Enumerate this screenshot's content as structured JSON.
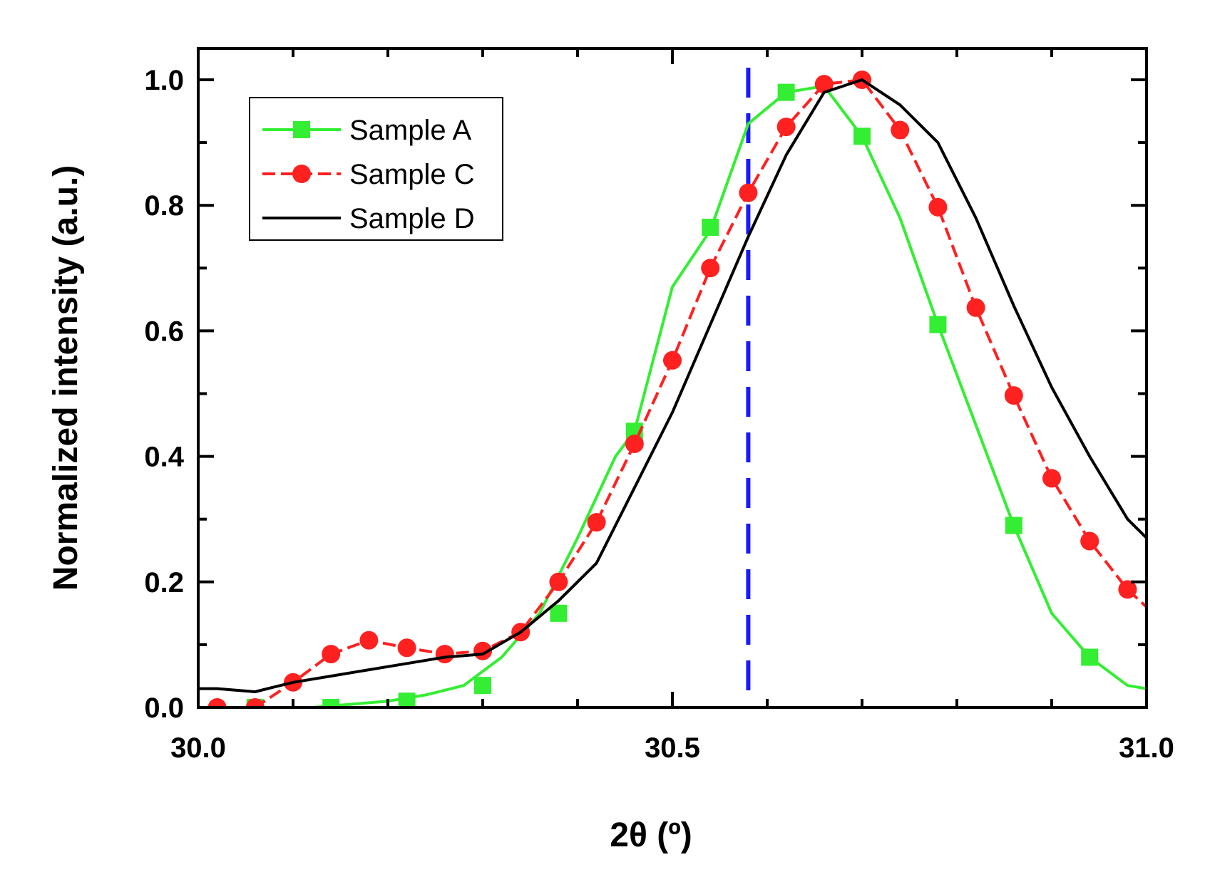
{
  "chart_data": {
    "type": "line",
    "title": "",
    "xlabel": "2θ (º)",
    "ylabel": "Normalized intensity (a.u.)",
    "xlim": [
      30.0,
      31.0
    ],
    "ylim": [
      0.0,
      1.05
    ],
    "x_ticks": [
      30.0,
      30.5,
      31.0
    ],
    "x_tick_labels": [
      "30.0",
      "30.5",
      "31.0"
    ],
    "y_ticks": [
      0.0,
      0.2,
      0.4,
      0.6,
      0.8,
      1.0
    ],
    "y_tick_labels": [
      "0.0",
      "0.2",
      "0.4",
      "0.6",
      "0.8",
      "1.0"
    ],
    "legend_position": "top-left",
    "reference_line": {
      "x": 30.58,
      "color": "#1a1aff",
      "style": "dashed"
    },
    "series": [
      {
        "name": "Sample A",
        "color": "#33ee33",
        "marker": "square",
        "x": [
          30.0,
          30.04,
          30.08,
          30.12,
          30.16,
          30.2,
          30.24,
          30.28,
          30.32,
          30.36,
          30.4,
          30.44,
          30.46,
          30.5,
          30.54,
          30.58,
          30.62,
          30.66,
          30.7,
          30.74,
          30.78,
          30.82,
          30.86,
          30.9,
          30.94,
          30.98,
          31.0
        ],
        "y": [
          0.0,
          0.0,
          0.0,
          0.0,
          0.005,
          0.01,
          0.02,
          0.035,
          0.08,
          0.15,
          0.27,
          0.4,
          0.44,
          0.67,
          0.76,
          0.93,
          0.98,
          0.99,
          0.91,
          0.78,
          0.61,
          0.45,
          0.29,
          0.15,
          0.08,
          0.035,
          0.03
        ],
        "marker_x": [
          30.06,
          30.14,
          30.22,
          30.3,
          30.38,
          30.46,
          30.54,
          30.62,
          30.7,
          30.78,
          30.86,
          30.94
        ],
        "marker_y": [
          0.0,
          0.0,
          0.01,
          0.035,
          0.15,
          0.44,
          0.765,
          0.98,
          0.91,
          0.61,
          0.29,
          0.08
        ]
      },
      {
        "name": "Sample C",
        "color": "#ff2020",
        "marker": "circle",
        "x": [
          30.02,
          30.06,
          30.1,
          30.14,
          30.18,
          30.22,
          30.26,
          30.3,
          30.34,
          30.38,
          30.42,
          30.46,
          30.5,
          30.54,
          30.58,
          30.62,
          30.66,
          30.7,
          30.74,
          30.78,
          30.82,
          30.86,
          30.9,
          30.94,
          30.98,
          31.0
        ],
        "y": [
          0.0,
          0.0,
          0.04,
          0.085,
          0.107,
          0.095,
          0.085,
          0.09,
          0.12,
          0.2,
          0.295,
          0.42,
          0.553,
          0.7,
          0.82,
          0.925,
          0.993,
          1.0,
          0.92,
          0.797,
          0.637,
          0.497,
          0.365,
          0.265,
          0.188,
          0.16
        ],
        "marker_x": [
          30.02,
          30.06,
          30.1,
          30.14,
          30.18,
          30.22,
          30.26,
          30.3,
          30.34,
          30.38,
          30.42,
          30.46,
          30.5,
          30.54,
          30.58,
          30.62,
          30.66,
          30.7,
          30.74,
          30.78,
          30.82,
          30.86,
          30.9,
          30.94,
          30.98
        ],
        "marker_y": [
          0.0,
          0.0,
          0.04,
          0.085,
          0.107,
          0.095,
          0.085,
          0.09,
          0.12,
          0.2,
          0.295,
          0.42,
          0.553,
          0.7,
          0.82,
          0.925,
          0.993,
          1.0,
          0.92,
          0.797,
          0.637,
          0.497,
          0.365,
          0.265,
          0.188
        ]
      },
      {
        "name": "Sample D",
        "color": "#000000",
        "marker": "none",
        "x": [
          30.0,
          30.02,
          30.06,
          30.1,
          30.14,
          30.18,
          30.22,
          30.26,
          30.3,
          30.34,
          30.38,
          30.42,
          30.46,
          30.5,
          30.54,
          30.58,
          30.62,
          30.66,
          30.7,
          30.74,
          30.78,
          30.82,
          30.86,
          30.9,
          30.94,
          30.98,
          31.0
        ],
        "y": [
          0.03,
          0.03,
          0.025,
          0.04,
          0.05,
          0.06,
          0.07,
          0.08,
          0.085,
          0.12,
          0.17,
          0.23,
          0.35,
          0.47,
          0.61,
          0.75,
          0.88,
          0.98,
          1.0,
          0.96,
          0.9,
          0.78,
          0.64,
          0.51,
          0.4,
          0.3,
          0.27
        ],
        "marker_x": [],
        "marker_y": []
      }
    ]
  }
}
